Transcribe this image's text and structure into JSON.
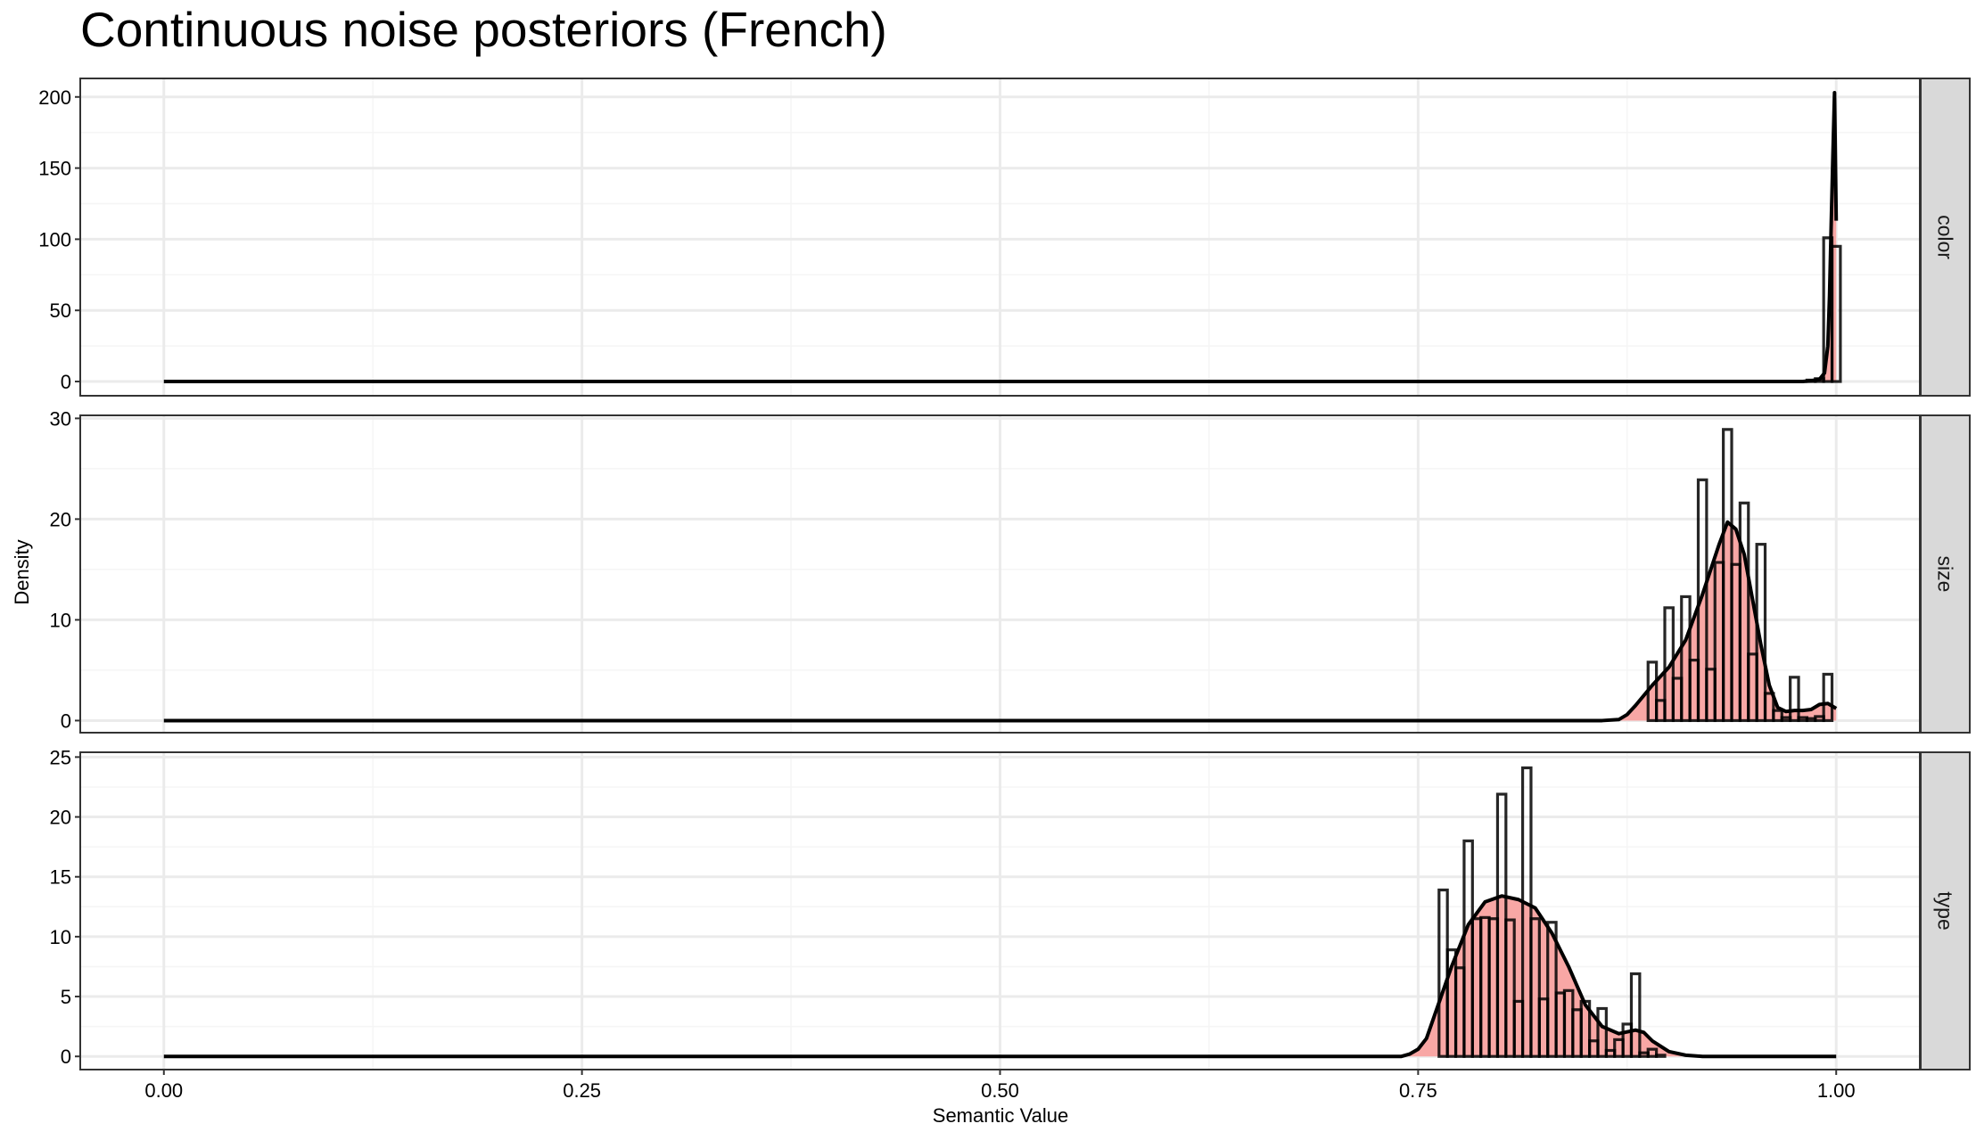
{
  "chart_data": {
    "type": "histogram-density",
    "title": "Continuous noise posteriors (French)",
    "xlabel": "Semantic Value",
    "ylabel": "Density",
    "xlim": [
      -0.05,
      1.05
    ],
    "x_ticks": [
      0,
      0.25,
      0.5,
      0.75,
      1
    ],
    "x_tick_labels": [
      "0.00",
      "0.25",
      "0.50",
      "0.75",
      "1.00"
    ],
    "bin_width": 0.005,
    "grid": true,
    "colors": {
      "density_fill": "#f8a7a5",
      "density_line": "#000000",
      "histogram_outline": "#000000",
      "panel_border": "#333333",
      "strip_fill": "#d9d9d9",
      "grid_major": "#ebebeb",
      "grid_minor": "#f5f5f5"
    },
    "panels": [
      {
        "strip": "color",
        "ylim": [
          -10,
          213
        ],
        "y_ticks": [
          0,
          50,
          100,
          150,
          200
        ],
        "y_tick_labels": [
          "0",
          "50",
          "100",
          "150",
          "200"
        ],
        "histogram": [
          {
            "x": 0.985,
            "y": 1
          },
          {
            "x": 0.99,
            "y": 2
          },
          {
            "x": 0.995,
            "y": 101
          },
          {
            "x": 1.0,
            "y": 95
          }
        ],
        "density": [
          [
            0,
            0
          ],
          [
            0.98,
            0
          ],
          [
            0.985,
            0.5
          ],
          [
            0.99,
            1.5
          ],
          [
            0.993,
            6
          ],
          [
            0.995,
            25
          ],
          [
            0.996,
            60
          ],
          [
            0.997,
            110
          ],
          [
            0.998,
            158
          ],
          [
            0.999,
            203
          ],
          [
            1.0,
            113
          ]
        ]
      },
      {
        "strip": "size",
        "ylim": [
          -1.2,
          30.3
        ],
        "y_ticks": [
          0,
          10,
          20,
          30
        ],
        "y_tick_labels": [
          "0",
          "10",
          "20",
          "30"
        ],
        "histogram": [
          {
            "x": 0.89,
            "y": 5.8
          },
          {
            "x": 0.895,
            "y": 2
          },
          {
            "x": 0.9,
            "y": 11.2
          },
          {
            "x": 0.905,
            "y": 4.2
          },
          {
            "x": 0.91,
            "y": 12.3
          },
          {
            "x": 0.915,
            "y": 6
          },
          {
            "x": 0.92,
            "y": 23.9
          },
          {
            "x": 0.925,
            "y": 5.1
          },
          {
            "x": 0.93,
            "y": 15.7
          },
          {
            "x": 0.935,
            "y": 28.9
          },
          {
            "x": 0.94,
            "y": 15.5
          },
          {
            "x": 0.945,
            "y": 21.6
          },
          {
            "x": 0.95,
            "y": 6.6
          },
          {
            "x": 0.955,
            "y": 17.5
          },
          {
            "x": 0.96,
            "y": 2.7
          },
          {
            "x": 0.965,
            "y": 1
          },
          {
            "x": 0.97,
            "y": 0.3
          },
          {
            "x": 0.975,
            "y": 4.3
          },
          {
            "x": 0.98,
            "y": 0.3
          },
          {
            "x": 0.985,
            "y": 0.2
          },
          {
            "x": 0.99,
            "y": 0.4
          },
          {
            "x": 0.995,
            "y": 4.6
          }
        ],
        "density": [
          [
            0,
            0
          ],
          [
            0.86,
            0
          ],
          [
            0.87,
            0.1
          ],
          [
            0.875,
            0.6
          ],
          [
            0.88,
            1.5
          ],
          [
            0.89,
            3.5
          ],
          [
            0.9,
            5.3
          ],
          [
            0.91,
            8
          ],
          [
            0.92,
            12.5
          ],
          [
            0.93,
            17.5
          ],
          [
            0.935,
            19.7
          ],
          [
            0.94,
            19
          ],
          [
            0.945,
            16.5
          ],
          [
            0.95,
            12
          ],
          [
            0.955,
            7.5
          ],
          [
            0.96,
            3.5
          ],
          [
            0.965,
            1.3
          ],
          [
            0.97,
            0.9
          ],
          [
            0.975,
            1
          ],
          [
            0.98,
            1
          ],
          [
            0.985,
            1.1
          ],
          [
            0.99,
            1.6
          ],
          [
            0.995,
            1.7
          ],
          [
            1.0,
            1.2
          ]
        ]
      },
      {
        "strip": "type",
        "ylim": [
          -1.1,
          25.4
        ],
        "y_ticks": [
          0,
          5,
          10,
          15,
          20,
          25
        ],
        "y_tick_labels": [
          "0",
          "5",
          "10",
          "15",
          "20",
          "25"
        ],
        "histogram": [
          {
            "x": 0.765,
            "y": 13.9
          },
          {
            "x": 0.77,
            "y": 8.9
          },
          {
            "x": 0.775,
            "y": 7.4
          },
          {
            "x": 0.78,
            "y": 18
          },
          {
            "x": 0.785,
            "y": 11.5
          },
          {
            "x": 0.79,
            "y": 11.6
          },
          {
            "x": 0.795,
            "y": 11.5
          },
          {
            "x": 0.8,
            "y": 21.9
          },
          {
            "x": 0.805,
            "y": 11.4
          },
          {
            "x": 0.81,
            "y": 4.6
          },
          {
            "x": 0.815,
            "y": 24.1
          },
          {
            "x": 0.82,
            "y": 11.5
          },
          {
            "x": 0.825,
            "y": 4.8
          },
          {
            "x": 0.83,
            "y": 11.2
          },
          {
            "x": 0.835,
            "y": 5.3
          },
          {
            "x": 0.84,
            "y": 5.5
          },
          {
            "x": 0.845,
            "y": 3.9
          },
          {
            "x": 0.85,
            "y": 4.6
          },
          {
            "x": 0.855,
            "y": 1.3
          },
          {
            "x": 0.86,
            "y": 4
          },
          {
            "x": 0.865,
            "y": 0.5
          },
          {
            "x": 0.87,
            "y": 1.4
          },
          {
            "x": 0.875,
            "y": 2.7
          },
          {
            "x": 0.88,
            "y": 6.9
          },
          {
            "x": 0.885,
            "y": 0.3
          },
          {
            "x": 0.89,
            "y": 0.6
          },
          {
            "x": 0.895,
            "y": 0.1
          }
        ],
        "density": [
          [
            0,
            0
          ],
          [
            0.74,
            0
          ],
          [
            0.745,
            0.2
          ],
          [
            0.75,
            0.6
          ],
          [
            0.755,
            1.5
          ],
          [
            0.76,
            3.5
          ],
          [
            0.77,
            7.5
          ],
          [
            0.78,
            11
          ],
          [
            0.79,
            12.9
          ],
          [
            0.8,
            13.4
          ],
          [
            0.81,
            13.1
          ],
          [
            0.82,
            12.4
          ],
          [
            0.83,
            10.3
          ],
          [
            0.84,
            7.5
          ],
          [
            0.85,
            4.3
          ],
          [
            0.86,
            2.5
          ],
          [
            0.87,
            1.9
          ],
          [
            0.88,
            2.2
          ],
          [
            0.885,
            2
          ],
          [
            0.89,
            1.3
          ],
          [
            0.9,
            0.4
          ],
          [
            0.91,
            0.1
          ],
          [
            0.92,
            0
          ],
          [
            1.0,
            0
          ]
        ]
      }
    ]
  }
}
